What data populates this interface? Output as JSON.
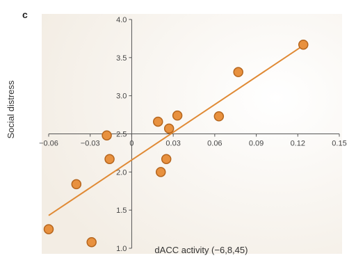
{
  "chart_data": {
    "type": "scatter",
    "panel_label": "c",
    "xlabel": "dACC activity (−6,8,45)",
    "ylabel": "Social distress",
    "xlim": [
      -0.06,
      0.15
    ],
    "ylim": [
      1.0,
      4.0
    ],
    "x_ticks": [
      "−0.06",
      "−0.03",
      "0",
      "0.03",
      "0.06",
      "0.09",
      "0.12",
      "0.15"
    ],
    "y_ticks": [
      "1.0",
      "1.5",
      "2.0",
      "2.5",
      "3.0",
      "3.5",
      "4.0"
    ],
    "points": [
      {
        "x": -0.06,
        "y": 1.25
      },
      {
        "x": -0.04,
        "y": 1.84
      },
      {
        "x": -0.029,
        "y": 1.08
      },
      {
        "x": -0.018,
        "y": 2.48
      },
      {
        "x": -0.016,
        "y": 2.17
      },
      {
        "x": 0.019,
        "y": 2.66
      },
      {
        "x": 0.021,
        "y": 2.0
      },
      {
        "x": 0.025,
        "y": 2.17
      },
      {
        "x": 0.027,
        "y": 2.57
      },
      {
        "x": 0.033,
        "y": 2.74
      },
      {
        "x": 0.063,
        "y": 2.73
      },
      {
        "x": 0.077,
        "y": 3.31
      },
      {
        "x": 0.124,
        "y": 3.67
      }
    ],
    "fit_line": {
      "x": [
        -0.06,
        0.124
      ],
      "y": [
        1.43,
        3.66
      ]
    },
    "colors": {
      "point_fill": "#e8913f",
      "point_stroke": "#b5651d",
      "line": "#e08a35",
      "axis": "#555555",
      "background": "#f3ede4"
    }
  }
}
